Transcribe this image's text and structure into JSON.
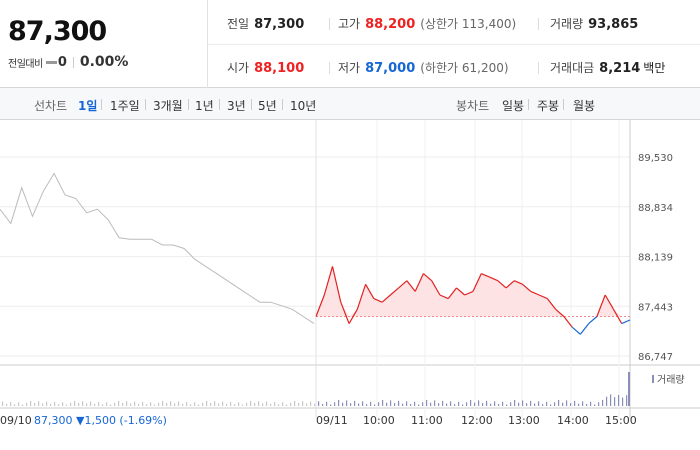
{
  "quote": {
    "price": "87,300",
    "change_label": "전일대비",
    "change_amount": "0",
    "change_pct": "0.00%",
    "prev_close_label": "전일",
    "prev_close": "87,300",
    "high_label": "고가",
    "high": "88,200",
    "upper_limit_label": "(상한가",
    "upper_limit": "113,400)",
    "volume_label": "거래량",
    "volume": "93,865",
    "open_label": "시가",
    "open": "88,100",
    "low_label": "저가",
    "low": "87,000",
    "lower_limit_label": "(하한가",
    "lower_limit": "61,200)",
    "turnover_label": "거래대금",
    "turnover": "8,214",
    "turnover_unit": "백만"
  },
  "tabs": {
    "line_chart_label": "선차트",
    "line_periods": [
      "1일",
      "1주일",
      "3개월",
      "1년",
      "3년",
      "5년",
      "10년"
    ],
    "selected": "1일",
    "candle_chart_label": "봉차트",
    "candle_periods": [
      "일봉",
      "주봉",
      "월봉"
    ]
  },
  "colors": {
    "up": "#e22222",
    "down": "#1766d6",
    "prev_day": "#bbbbbb",
    "fill_up": "#fde3e3"
  },
  "chart_data": {
    "type": "line",
    "prev_day_label": "09/10",
    "prev_day_summary": "87,300 ▼1,500 (-1.69%)",
    "today_label": "09/11",
    "baseline": 87300,
    "y_ticks": [
      "89,530",
      "88,834",
      "88,139",
      "87,443",
      "86,747"
    ],
    "ylim": [
      86747,
      89530
    ],
    "x_ticks": [
      "10:00",
      "11:00",
      "12:00",
      "13:00",
      "14:00",
      "15:00"
    ],
    "volume_legend": "거래량",
    "prev_day_series": [
      88800,
      88600,
      89100,
      88700,
      89050,
      89300,
      89000,
      88950,
      88750,
      88800,
      88650,
      88400,
      88380,
      88380,
      88380,
      88300,
      88300,
      88250,
      88100,
      88000,
      87900,
      87800,
      87700,
      87600,
      87500,
      87500,
      87450,
      87400,
      87300,
      87200
    ],
    "today_series": [
      87300,
      87600,
      88000,
      87500,
      87200,
      87400,
      87750,
      87550,
      87500,
      87600,
      87700,
      87800,
      87650,
      87900,
      87800,
      87600,
      87550,
      87700,
      87600,
      87650,
      87900,
      87850,
      87800,
      87700,
      87800,
      87750,
      87650,
      87600,
      87550,
      87400,
      87300,
      87150,
      87050,
      87200,
      87300,
      87600,
      87400,
      87200,
      87250
    ]
  }
}
